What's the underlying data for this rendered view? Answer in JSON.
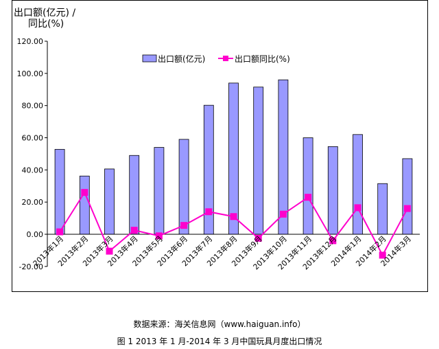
{
  "chart_data": {
    "type": "bar",
    "ylabel": [
      "出口额(亿元) /",
      "同比(%)"
    ],
    "y_ticks": [
      "120.00",
      "100.00",
      "80.00",
      "60.00",
      "40.00",
      "20.00",
      "0.00",
      "-20.00"
    ],
    "ylim": [
      -20,
      120
    ],
    "categories": [
      "2013年1月",
      "2013年2月",
      "2013年3月",
      "2013年4月",
      "2013年5月",
      "2013年6月",
      "2013年7月",
      "2013年8月",
      "2013年9月",
      "2013年10月",
      "2013年11月",
      "2013年12月",
      "2014年1月",
      "2014年2月",
      "2014年3月"
    ],
    "series": [
      {
        "name": "出口额(亿元)",
        "type": "bar",
        "color": "#9999ff",
        "values": [
          52.8,
          36.2,
          40.6,
          49.0,
          54.0,
          59.0,
          80.2,
          94.0,
          91.5,
          96.0,
          60.0,
          54.5,
          62.0,
          31.5,
          47.0
        ]
      },
      {
        "name": "出口额同比(%)",
        "type": "line",
        "color": "#ff00cc",
        "values": [
          1.5,
          26.0,
          -10.5,
          2.5,
          -1.0,
          5.5,
          14.0,
          11.0,
          -2.5,
          12.5,
          23.0,
          -4.0,
          16.5,
          -13.0,
          16.0
        ]
      }
    ],
    "legend_position": "top-right",
    "grid": false
  },
  "source": "数据来源：海关信息网（www.haiguan.info）",
  "caption": "图 1 2013 年 1 月-2014 年 3 月中国玩具月度出口情况"
}
